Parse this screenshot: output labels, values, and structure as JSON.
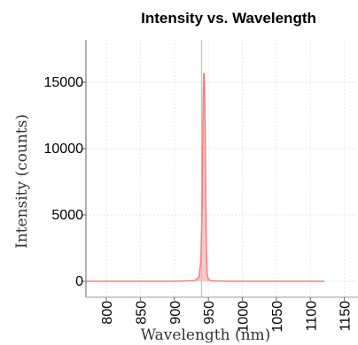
{
  "chart_data": {
    "type": "line",
    "title": "Intensity vs. Wavelength",
    "xlabel": "Wavelength (nm)",
    "ylabel": "Intensity (counts)",
    "xlim": [
      770,
      1170
    ],
    "ylim": [
      -1200,
      18200
    ],
    "x_ticks": [
      800,
      850,
      900,
      950,
      1000,
      1050,
      1100,
      1150
    ],
    "x_tick_labels": [
      "800",
      "850",
      "900",
      "950",
      "1000",
      "1050",
      "1100",
      "1150"
    ],
    "y_ticks": [
      0,
      5000,
      10000,
      15000
    ],
    "y_tick_labels": [
      "0",
      "5000",
      "10000",
      "15000"
    ],
    "grid": true,
    "marker_wavelength": 940,
    "series": [
      {
        "color": "#f08080",
        "fill": "#f7b2b2",
        "x": [
          770,
          900,
          930,
          936,
          939,
          941,
          942,
          943,
          944,
          945,
          946,
          947,
          948,
          950,
          955,
          980,
          1120
        ],
        "y": [
          0,
          0,
          50,
          300,
          1500,
          6000,
          12000,
          15600,
          15700,
          13000,
          7000,
          2500,
          600,
          150,
          30,
          0,
          0
        ]
      }
    ],
    "marker_color": "#8fe08f"
  }
}
